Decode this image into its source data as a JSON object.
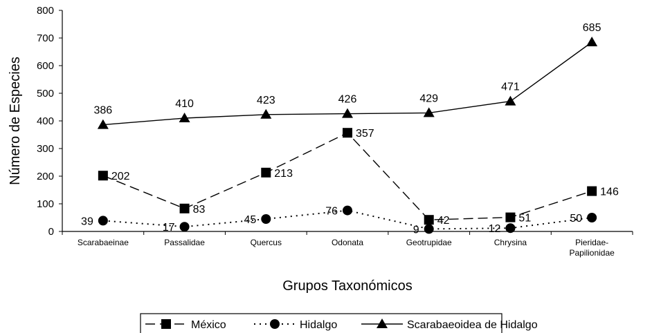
{
  "chart_data": {
    "type": "line",
    "xlabel": "Grupos Taxonómicos",
    "ylabel": "Número de Especies",
    "ylim": [
      0,
      800
    ],
    "yticks": [
      0,
      100,
      200,
      300,
      400,
      500,
      600,
      700,
      800
    ],
    "grid": false,
    "legend_position": "bottom",
    "categories": [
      [
        "Scarabaeinae"
      ],
      [
        "Passalidae"
      ],
      [
        "Quercus"
      ],
      [
        "Odonata"
      ],
      [
        "Geotrupidae"
      ],
      [
        "Chrysina"
      ],
      [
        "Pieridae-",
        "Papilionidae"
      ]
    ],
    "series": [
      {
        "name": "México",
        "marker": "square",
        "dash": "long-dash",
        "color": "#000000",
        "values": [
          202,
          83,
          213,
          357,
          42,
          51,
          146
        ]
      },
      {
        "name": "Hidalgo",
        "marker": "circle",
        "dash": "dotted",
        "color": "#000000",
        "values": [
          39,
          17,
          45,
          76,
          9,
          12,
          50
        ]
      },
      {
        "name": "Scarabaeoidea de Hidalgo",
        "marker": "triangle",
        "dash": "solid",
        "color": "#000000",
        "values": [
          386,
          410,
          423,
          426,
          429,
          471,
          685
        ]
      }
    ]
  }
}
